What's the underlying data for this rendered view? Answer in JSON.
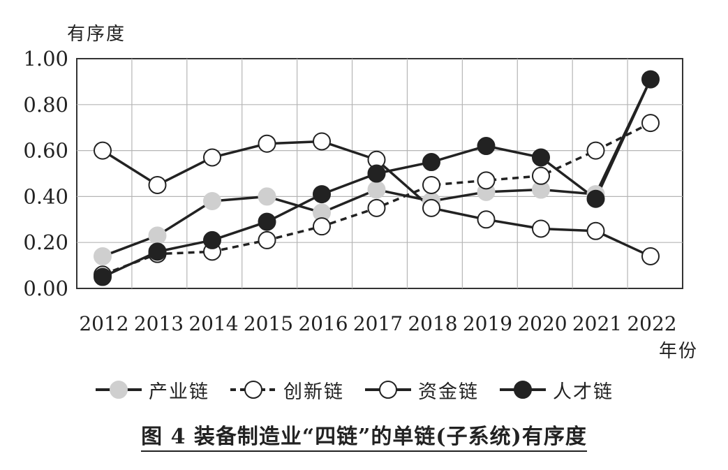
{
  "chart_data": {
    "type": "line",
    "ylabel": "有序度",
    "xlabel": "年份",
    "title": "图 4  装备制造业“四链”的单链(子系统)有序度",
    "x": [
      "2012",
      "2013",
      "2014",
      "2015",
      "2016",
      "2017",
      "2018",
      "2019",
      "2020",
      "2021",
      "2022"
    ],
    "ylim": [
      0,
      1.0
    ],
    "yticks": [
      "0.00",
      "0.20",
      "0.40",
      "0.60",
      "0.80",
      "1.00"
    ],
    "grid": true,
    "legend": "bottom",
    "series": [
      {
        "name": "产业链",
        "style": "solid",
        "marker": "gray-filled",
        "color": "#cfcfcf",
        "values": [
          0.14,
          0.23,
          0.38,
          0.4,
          0.33,
          0.43,
          0.38,
          0.42,
          0.43,
          0.41,
          0.91
        ]
      },
      {
        "name": "创新链",
        "style": "dashed",
        "marker": "hollow",
        "color": "#ffffff",
        "values": [
          0.06,
          0.15,
          0.16,
          0.21,
          0.27,
          0.35,
          0.45,
          0.47,
          0.49,
          0.6,
          0.72
        ]
      },
      {
        "name": "资金链",
        "style": "solid",
        "marker": "hollow",
        "color": "#ffffff",
        "values": [
          0.6,
          0.45,
          0.57,
          0.63,
          0.64,
          0.56,
          0.35,
          0.3,
          0.26,
          0.25,
          0.14
        ]
      },
      {
        "name": "人才链",
        "style": "solid",
        "marker": "black-filled",
        "color": "#222222",
        "values": [
          0.05,
          0.16,
          0.21,
          0.29,
          0.41,
          0.5,
          0.55,
          0.62,
          0.57,
          0.39,
          0.91
        ]
      }
    ]
  }
}
